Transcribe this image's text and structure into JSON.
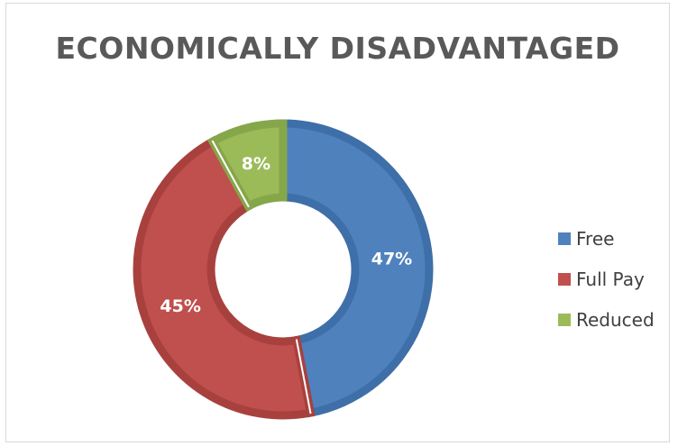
{
  "chart_data": {
    "type": "pie",
    "variant": "donut",
    "title": "ECONOMICALLY DISADVANTAGED",
    "categories": [
      "Free",
      "Full Pay",
      "Reduced"
    ],
    "values": [
      47,
      45,
      8
    ],
    "value_labels": [
      "47%",
      "45%",
      "8%"
    ],
    "colors": [
      "#4f81bd",
      "#c0504d",
      "#9bbb59"
    ],
    "edge_colors": [
      "#3f6fa8",
      "#a8413e",
      "#86a64a"
    ],
    "legend": {
      "placement": "right",
      "items": [
        "Free",
        "Full Pay",
        "Reduced"
      ]
    }
  }
}
